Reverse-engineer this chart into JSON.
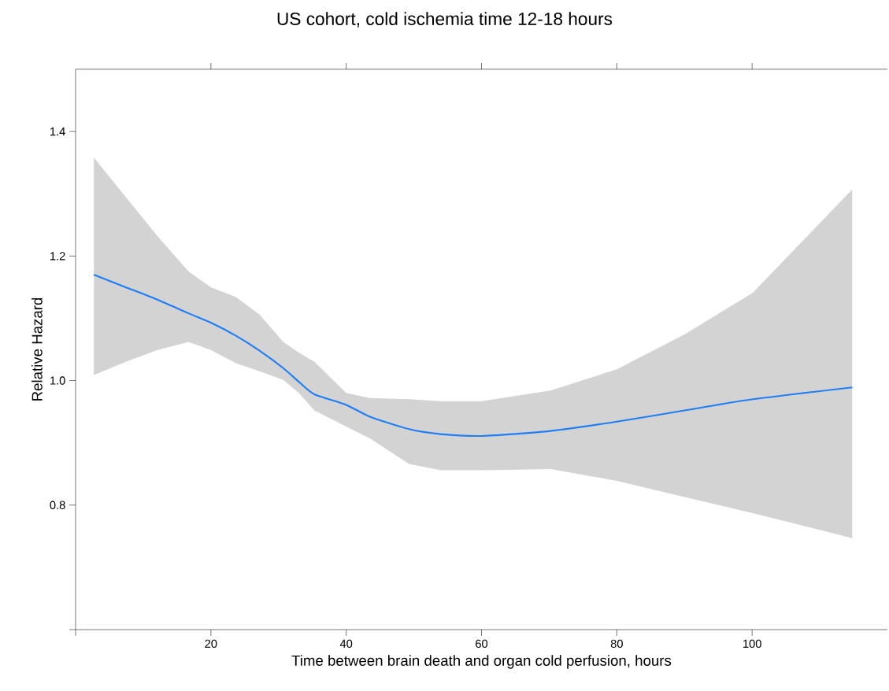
{
  "chart_data": {
    "type": "line",
    "title": "US cohort, cold ischemia time  12-18 hours",
    "xlabel": "Time between brain death and organ cold perfusion, hours",
    "ylabel": "Relative Hazard",
    "xlim": [
      0,
      120
    ],
    "xticks": [
      {
        "value": 0,
        "label": null
      },
      20,
      40,
      60,
      80,
      100
    ],
    "ylim": [
      0.6,
      1.5
    ],
    "yticks": [
      {
        "value": 0.6,
        "label": null
      },
      0.8,
      {
        "value": 1.0,
        "label": "1.0"
      },
      1.2,
      1.4
    ],
    "series": [
      {
        "color": "#1f7ef5",
        "x": [
          2.7,
          7.4,
          12.1,
          16.7,
          20,
          23.7,
          27.2,
          30.7,
          33,
          35.3,
          40,
          43.5,
          49.3,
          54,
          60,
          70.2,
          80,
          90,
          100.1,
          114.8
        ],
        "values": [
          1.17,
          1.15,
          1.13,
          1.108,
          1.093,
          1.072,
          1.048,
          1.02,
          0.998,
          0.978,
          0.961,
          0.942,
          0.922,
          0.914,
          0.911,
          0.919,
          0.934,
          0.952,
          0.97,
          0.989
        ],
        "lower": [
          1.009,
          1.03,
          1.049,
          1.062,
          1.049,
          1.028,
          1.015,
          1.001,
          0.98,
          0.952,
          0.926,
          0.907,
          0.866,
          0.856,
          0.856,
          0.858,
          0.839,
          0.813,
          0.787,
          0.747
        ],
        "upper": [
          1.358,
          1.295,
          1.232,
          1.175,
          1.15,
          1.134,
          1.106,
          1.062,
          1.045,
          1.03,
          0.98,
          0.972,
          0.97,
          0.967,
          0.967,
          0.984,
          1.018,
          1.074,
          1.141,
          1.307
        ]
      }
    ]
  }
}
